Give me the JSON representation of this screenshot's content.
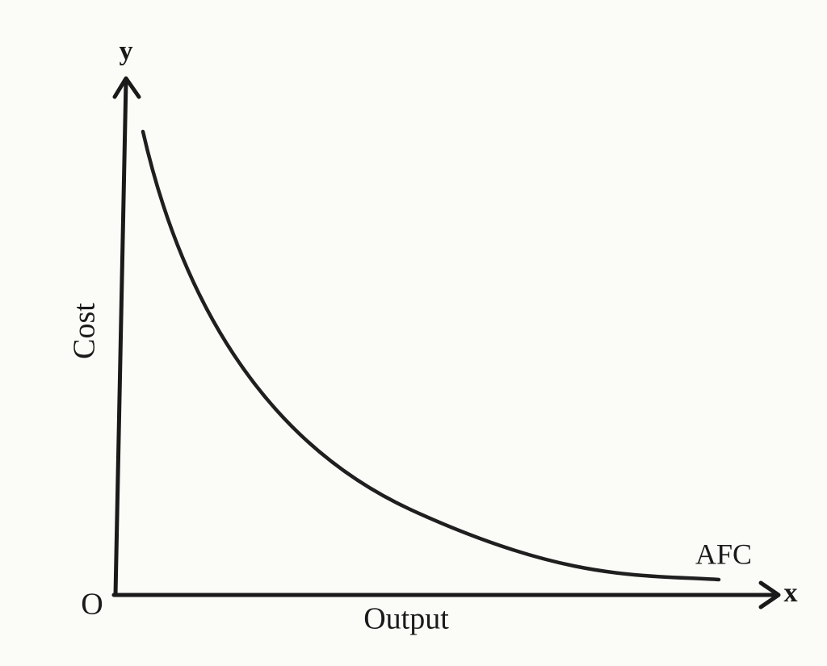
{
  "axes": {
    "y_label": "y",
    "y_title": "Cost",
    "origin": "O",
    "x_title": "Output",
    "x_label": "x"
  },
  "curve": {
    "label": "AFC"
  }
}
